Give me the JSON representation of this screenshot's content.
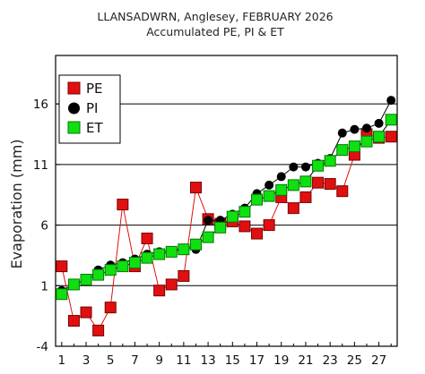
{
  "chart_data": {
    "type": "line",
    "title": "LLANSADWRN, Anglesey, FEBRUARY 2026",
    "subtitle": "Accumulated PE,  PI & ET",
    "ylabel": "Evaporation (mm)",
    "xlabel": "",
    "xlim": [
      0.5,
      28.5
    ],
    "ylim": [
      -4,
      20
    ],
    "x_ticks": [
      1,
      3,
      5,
      7,
      9,
      11,
      13,
      15,
      17,
      19,
      21,
      23,
      25,
      27
    ],
    "y_ticks": [
      -4,
      1,
      6,
      11,
      16
    ],
    "gridlines_y": [
      1,
      6,
      11,
      16
    ],
    "legend_position": "top-left",
    "x": [
      1,
      2,
      3,
      4,
      5,
      6,
      7,
      8,
      9,
      10,
      11,
      12,
      13,
      14,
      15,
      16,
      17,
      18,
      19,
      20,
      21,
      22,
      23,
      24,
      25,
      26,
      27,
      28
    ],
    "series": [
      {
        "name": "PE",
        "color": "#e01010",
        "marker": "square",
        "line_color": "#e01010",
        "values": [
          2.6,
          -1.9,
          -1.2,
          -2.7,
          -0.8,
          7.7,
          2.6,
          4.9,
          0.6,
          1.1,
          1.8,
          9.1,
          6.5,
          6.1,
          6.3,
          5.9,
          5.3,
          6.0,
          8.3,
          7.4,
          8.3,
          9.5,
          9.4,
          8.8,
          11.8,
          13.5,
          13.2,
          13.3
        ]
      },
      {
        "name": "PI",
        "color": "#000000",
        "marker": "circle",
        "line_color": "#000000",
        "values": [
          0.6,
          1.1,
          1.5,
          2.3,
          2.7,
          2.9,
          3.2,
          3.6,
          3.8,
          3.9,
          4.1,
          4.0,
          6.4,
          6.4,
          6.9,
          7.4,
          8.6,
          9.3,
          10.0,
          10.8,
          10.8,
          11.1,
          11.5,
          13.6,
          13.9,
          14.0,
          14.4,
          16.3
        ]
      },
      {
        "name": "ET",
        "color": "#10e010",
        "marker": "square",
        "line_color": "#000000",
        "values": [
          0.3,
          1.1,
          1.5,
          1.9,
          2.3,
          2.6,
          2.9,
          3.3,
          3.6,
          3.8,
          4.0,
          4.4,
          5.0,
          5.8,
          6.7,
          7.1,
          8.1,
          8.4,
          8.9,
          9.3,
          9.6,
          10.9,
          11.3,
          12.2,
          12.5,
          12.9,
          13.3,
          14.7
        ]
      }
    ]
  }
}
